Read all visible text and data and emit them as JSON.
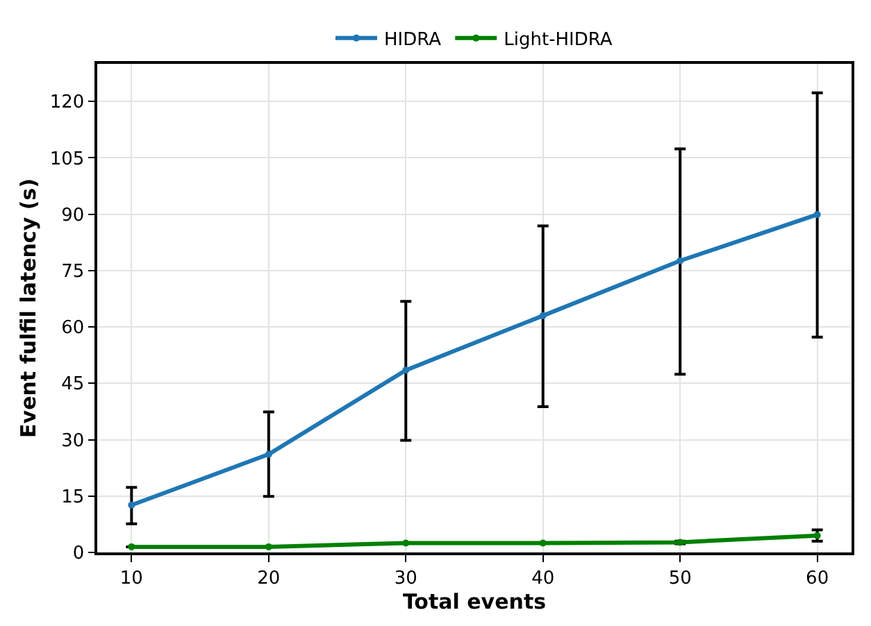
{
  "chart_data": {
    "type": "line",
    "xlabel": "Total events",
    "ylabel": "Event fulfil latency (s)",
    "x": [
      10,
      20,
      30,
      40,
      50,
      60
    ],
    "series": [
      {
        "name": "HIDRA",
        "color": "#1f77b4",
        "values": [
          12.6,
          26.1,
          48.5,
          63.0,
          77.6,
          89.9
        ],
        "errors": [
          [
            7.6,
            17.3
          ],
          [
            14.9,
            37.4
          ],
          [
            29.8,
            66.8
          ],
          [
            38.8,
            86.9
          ],
          [
            47.4,
            107.4
          ],
          [
            57.3,
            122.3
          ]
        ]
      },
      {
        "name": "Light-HIDRA",
        "color": "#008000",
        "values": [
          1.5,
          1.5,
          2.5,
          2.5,
          2.7,
          4.5
        ],
        "errors": [
          null,
          null,
          null,
          null,
          [
            2.3,
            3.0
          ],
          [
            3.0,
            6.0
          ]
        ]
      }
    ],
    "xlim": [
      7.5,
      62.5
    ],
    "xticks": [
      10,
      20,
      30,
      40,
      50,
      60
    ],
    "ylim": [
      0,
      130
    ],
    "yticks": [
      0,
      15,
      30,
      45,
      60,
      75,
      90,
      105,
      120
    ],
    "grid": true,
    "legend": "top",
    "marker": "circle",
    "line_style": "solid"
  }
}
